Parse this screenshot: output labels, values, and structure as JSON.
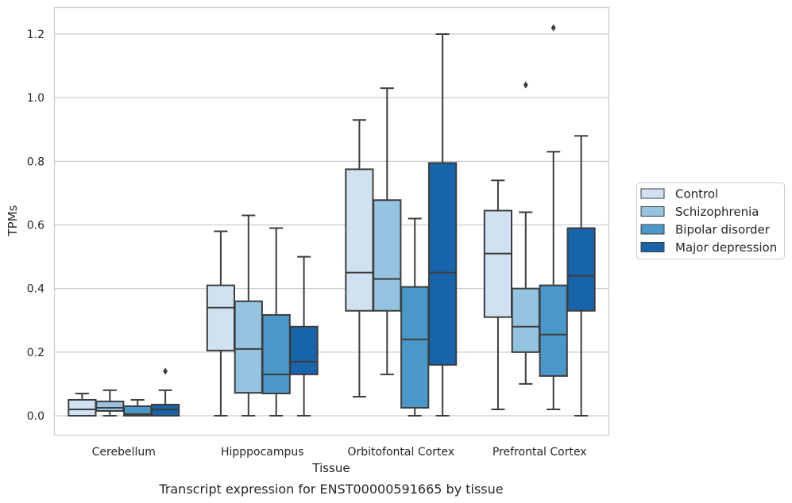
{
  "chart_data": {
    "type": "box",
    "xlabel": "Tissue",
    "ylabel": "TPMs",
    "caption": "Transcript expression for ENST00000591665 by tissue",
    "ylim": [
      -0.06,
      1.28
    ],
    "yticks": [
      0.0,
      0.2,
      0.4,
      0.6,
      0.8,
      1.0,
      1.2
    ],
    "ytick_labels": [
      "0.0",
      "0.2",
      "0.4",
      "0.6",
      "0.8",
      "1.0",
      "1.2"
    ],
    "grid": "horizontal",
    "legend_position": "right",
    "categories": [
      "Cerebellum",
      "Hipppocampus",
      "Orbitofontal Cortex",
      "Prefrontal Cortex"
    ],
    "series": [
      {
        "name": "Control",
        "color": "#d0e1f2",
        "boxes": [
          {
            "whislo": 0.0,
            "q1": 0.0,
            "med": 0.02,
            "q3": 0.05,
            "whishi": 0.07,
            "fliers": []
          },
          {
            "whislo": 0.0,
            "q1": 0.205,
            "med": 0.34,
            "q3": 0.41,
            "whishi": 0.58,
            "fliers": []
          },
          {
            "whislo": 0.06,
            "q1": 0.33,
            "med": 0.45,
            "q3": 0.775,
            "whishi": 0.93,
            "fliers": []
          },
          {
            "whislo": 0.02,
            "q1": 0.31,
            "med": 0.51,
            "q3": 0.645,
            "whishi": 0.74,
            "fliers": []
          }
        ]
      },
      {
        "name": "Schizophrenia",
        "color": "#94c4df",
        "boxes": [
          {
            "whislo": 0.0,
            "q1": 0.015,
            "med": 0.025,
            "q3": 0.045,
            "whishi": 0.08,
            "fliers": []
          },
          {
            "whislo": 0.0,
            "q1": 0.072,
            "med": 0.21,
            "q3": 0.36,
            "whishi": 0.63,
            "fliers": []
          },
          {
            "whislo": 0.13,
            "q1": 0.33,
            "med": 0.43,
            "q3": 0.678,
            "whishi": 1.03,
            "fliers": []
          },
          {
            "whislo": 0.1,
            "q1": 0.2,
            "med": 0.28,
            "q3": 0.4,
            "whishi": 0.64,
            "fliers": [
              1.04
            ]
          }
        ]
      },
      {
        "name": "Bipolar disorder",
        "color": "#4a98c9",
        "boxes": [
          {
            "whislo": 0.0,
            "q1": 0.0,
            "med": 0.005,
            "q3": 0.03,
            "whishi": 0.05,
            "fliers": []
          },
          {
            "whislo": 0.0,
            "q1": 0.07,
            "med": 0.13,
            "q3": 0.317,
            "whishi": 0.59,
            "fliers": []
          },
          {
            "whislo": 0.0,
            "q1": 0.025,
            "med": 0.24,
            "q3": 0.405,
            "whishi": 0.62,
            "fliers": []
          },
          {
            "whislo": 0.02,
            "q1": 0.125,
            "med": 0.255,
            "q3": 0.41,
            "whishi": 0.83,
            "fliers": [
              1.22
            ]
          }
        ]
      },
      {
        "name": "Major depression",
        "color": "#1764ab",
        "boxes": [
          {
            "whislo": 0.0,
            "q1": 0.0,
            "med": 0.02,
            "q3": 0.035,
            "whishi": 0.08,
            "fliers": [
              0.14
            ]
          },
          {
            "whislo": 0.0,
            "q1": 0.13,
            "med": 0.17,
            "q3": 0.28,
            "whishi": 0.5,
            "fliers": []
          },
          {
            "whislo": 0.0,
            "q1": 0.16,
            "med": 0.45,
            "q3": 0.795,
            "whishi": 1.2,
            "fliers": []
          },
          {
            "whislo": 0.0,
            "q1": 0.33,
            "med": 0.44,
            "q3": 0.59,
            "whishi": 0.88,
            "fliers": []
          }
        ]
      }
    ]
  }
}
